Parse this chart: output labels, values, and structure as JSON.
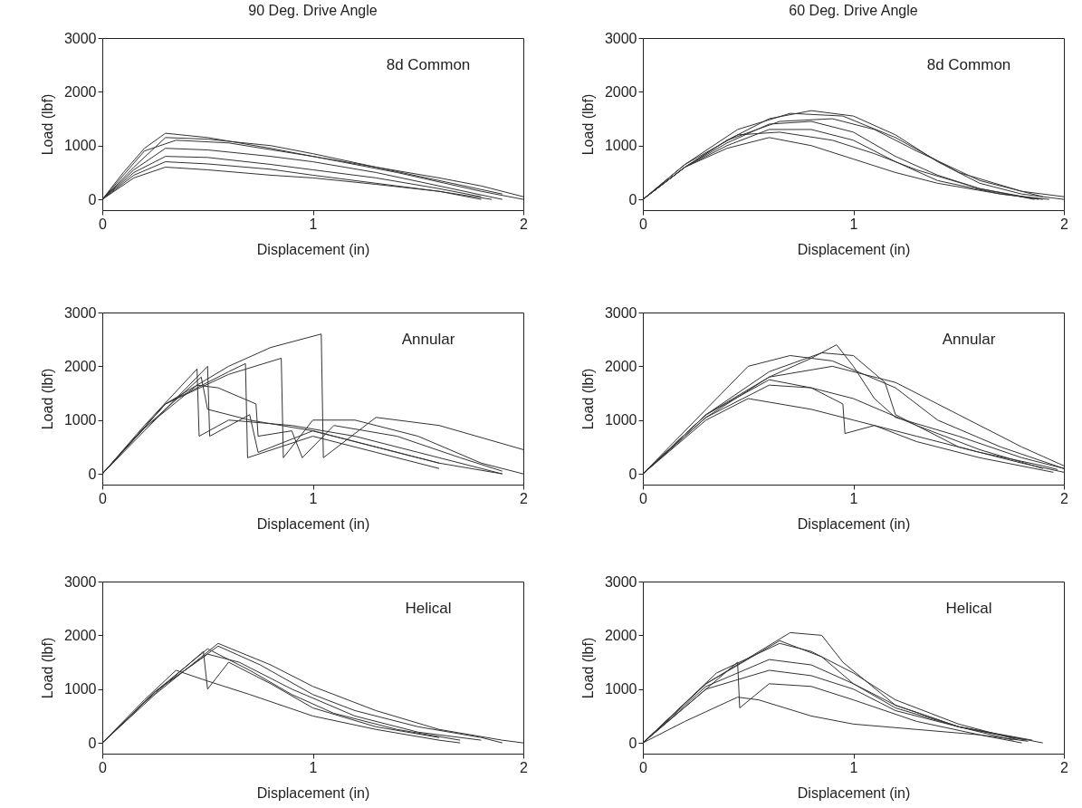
{
  "chart_data": [
    {
      "type": "line",
      "title": "90 Deg. Drive Angle",
      "xlabel": "Displacement (in)",
      "ylabel": "Load (lbf)",
      "annotations": [
        "8d Common"
      ],
      "xlim": [
        0,
        2
      ],
      "xticks": [
        0,
        1,
        2
      ],
      "ylim": [
        -200,
        3000
      ],
      "yticks": [
        0,
        1000,
        2000,
        3000
      ],
      "grid": false,
      "legend": false,
      "line_style": "solid",
      "series": [
        {
          "color": "#333333",
          "x": [
            0,
            0.1,
            0.2,
            0.3,
            0.5,
            0.8,
            1.0,
            1.3,
            1.6,
            1.8,
            2.0
          ],
          "values": [
            0,
            500,
            950,
            1230,
            1150,
            950,
            800,
            600,
            400,
            250,
            50
          ]
        },
        {
          "color": "#333333",
          "x": [
            0,
            0.15,
            0.3,
            0.5,
            0.8,
            1.0,
            1.3,
            1.6,
            1.9
          ],
          "values": [
            0,
            600,
            1150,
            1120,
            1000,
            850,
            600,
            350,
            100
          ]
        },
        {
          "color": "#333333",
          "x": [
            0,
            0.15,
            0.3,
            0.5,
            0.8,
            1.0,
            1.3,
            1.6,
            1.9
          ],
          "values": [
            0,
            550,
            950,
            920,
            800,
            700,
            500,
            250,
            0
          ]
        },
        {
          "color": "#333333",
          "x": [
            0,
            0.15,
            0.3,
            0.5,
            0.8,
            1.0,
            1.3,
            1.6,
            1.8
          ],
          "values": [
            0,
            500,
            800,
            780,
            650,
            550,
            400,
            200,
            50
          ]
        },
        {
          "color": "#333333",
          "x": [
            0,
            0.15,
            0.3,
            0.5,
            0.8,
            1.0,
            1.3,
            1.6,
            1.8
          ],
          "values": [
            0,
            450,
            700,
            660,
            560,
            450,
            300,
            150,
            0
          ]
        },
        {
          "color": "#333333",
          "x": [
            0,
            0.15,
            0.3,
            0.5,
            0.8,
            1.0,
            1.3,
            1.6,
            1.85
          ],
          "values": [
            0,
            400,
            600,
            550,
            450,
            400,
            280,
            150,
            0
          ]
        },
        {
          "color": "#333333",
          "x": [
            0,
            0.2,
            0.35,
            0.6,
            1.0,
            1.4,
            1.8,
            2.0
          ],
          "values": [
            0,
            900,
            1100,
            1050,
            800,
            500,
            150,
            0
          ]
        }
      ]
    },
    {
      "type": "line",
      "title": "60 Deg. Drive Angle",
      "xlabel": "Displacement (in)",
      "ylabel": "Load (lbf)",
      "annotations": [
        "8d Common"
      ],
      "xlim": [
        0,
        2
      ],
      "xticks": [
        0,
        1,
        2
      ],
      "ylim": [
        -200,
        3000
      ],
      "yticks": [
        0,
        1000,
        2000,
        3000
      ],
      "grid": false,
      "legend": false,
      "line_style": "solid",
      "series": [
        {
          "color": "#333333",
          "x": [
            0,
            0.2,
            0.4,
            0.6,
            0.8,
            1.0,
            1.2,
            1.4,
            1.6,
            1.8,
            2.0
          ],
          "values": [
            0,
            600,
            1100,
            1500,
            1650,
            1550,
            1200,
            700,
            300,
            100,
            0
          ]
        },
        {
          "color": "#333333",
          "x": [
            0,
            0.2,
            0.4,
            0.6,
            0.8,
            1.0,
            1.2,
            1.4,
            1.6,
            1.88
          ],
          "values": [
            0,
            600,
            1050,
            1400,
            1450,
            1250,
            800,
            450,
            200,
            0
          ]
        },
        {
          "color": "#333333",
          "x": [
            0,
            0.2,
            0.4,
            0.6,
            0.8,
            1.0,
            1.2,
            1.4,
            1.7,
            1.9
          ],
          "values": [
            0,
            600,
            1000,
            1300,
            1300,
            1100,
            700,
            350,
            100,
            0
          ]
        },
        {
          "color": "#333333",
          "x": [
            0,
            0.2,
            0.4,
            0.6,
            0.8,
            1.0,
            1.2,
            1.4,
            1.7,
            1.93
          ],
          "values": [
            0,
            600,
            950,
            1150,
            1000,
            750,
            500,
            300,
            100,
            0
          ]
        },
        {
          "color": "#333333",
          "x": [
            0,
            0.2,
            0.45,
            0.65,
            0.9,
            1.1,
            1.3,
            1.6,
            1.86
          ],
          "values": [
            0,
            650,
            1200,
            1250,
            1100,
            850,
            550,
            200,
            0
          ]
        },
        {
          "color": "#333333",
          "x": [
            0,
            0.2,
            0.4,
            0.65,
            0.9,
            1.1,
            1.3,
            1.6,
            1.9
          ],
          "values": [
            0,
            600,
            1100,
            1450,
            1500,
            1300,
            900,
            350,
            50
          ]
        },
        {
          "color": "#333333",
          "x": [
            0,
            0.2,
            0.45,
            0.7,
            0.95,
            1.2,
            1.5,
            1.8,
            2.0
          ],
          "values": [
            0,
            650,
            1300,
            1600,
            1550,
            1150,
            500,
            150,
            50
          ]
        }
      ]
    },
    {
      "type": "line",
      "xlabel": "Displacement (in)",
      "ylabel": "Load (lbf)",
      "annotations": [
        "Annular"
      ],
      "xlim": [
        0,
        2
      ],
      "xticks": [
        0,
        1,
        2
      ],
      "ylim": [
        -200,
        3000
      ],
      "yticks": [
        0,
        1000,
        2000,
        3000
      ],
      "grid": false,
      "legend": false,
      "line_style": "solid",
      "series": [
        {
          "color": "#333333",
          "x": [
            0,
            0.2,
            0.45,
            0.46,
            0.6,
            0.9,
            1.2,
            1.5,
            1.8,
            1.9
          ],
          "values": [
            0,
            900,
            1950,
            700,
            1000,
            900,
            700,
            400,
            100,
            0
          ]
        },
        {
          "color": "#333333",
          "x": [
            0,
            0.2,
            0.47,
            0.5,
            0.7,
            1.0,
            1.3,
            1.6,
            1.9
          ],
          "values": [
            0,
            850,
            1800,
            1200,
            1000,
            800,
            500,
            200,
            0
          ]
        },
        {
          "color": "#333333",
          "x": [
            0,
            0.2,
            0.5,
            0.51,
            0.7,
            0.74,
            1.0,
            1.3,
            1.6
          ],
          "values": [
            0,
            800,
            2000,
            700,
            1100,
            400,
            800,
            500,
            200
          ]
        },
        {
          "color": "#333333",
          "x": [
            0,
            0.3,
            0.6,
            0.68,
            0.69,
            1.0,
            1.3,
            1.6
          ],
          "values": [
            0,
            1300,
            1900,
            2050,
            300,
            700,
            400,
            100
          ]
        },
        {
          "color": "#333333",
          "x": [
            0,
            0.3,
            0.6,
            0.85,
            0.86,
            1.0,
            1.2,
            1.5,
            1.8,
            2.0
          ],
          "values": [
            0,
            1300,
            1850,
            2150,
            300,
            1000,
            1000,
            700,
            200,
            0
          ]
        },
        {
          "color": "#333333",
          "x": [
            0,
            0.3,
            0.6,
            0.8,
            1.04,
            1.05,
            1.3,
            1.6,
            2.0
          ],
          "values": [
            0,
            1300,
            2000,
            2350,
            2600,
            300,
            1050,
            900,
            450
          ]
        },
        {
          "color": "#333333",
          "x": [
            0,
            0.2,
            0.45,
            0.55,
            0.73,
            0.74,
            0.9,
            0.95,
            1.1,
            1.4,
            1.7,
            1.9
          ],
          "values": [
            0,
            850,
            1650,
            1600,
            1300,
            700,
            800,
            300,
            900,
            700,
            300,
            50
          ]
        }
      ]
    },
    {
      "type": "line",
      "xlabel": "Displacement (in)",
      "ylabel": "Load (lbf)",
      "annotations": [
        "Annular"
      ],
      "xlim": [
        0,
        2
      ],
      "xticks": [
        0,
        1,
        2
      ],
      "ylim": [
        -200,
        3000
      ],
      "yticks": [
        0,
        1000,
        2000,
        3000
      ],
      "grid": false,
      "legend": false,
      "line_style": "solid",
      "series": [
        {
          "color": "#333333",
          "x": [
            0,
            0.3,
            0.5,
            0.8,
            1.0,
            1.3,
            1.6,
            1.9,
            1.97
          ],
          "values": [
            0,
            1000,
            1400,
            1200,
            1000,
            700,
            400,
            150,
            80
          ]
        },
        {
          "color": "#333333",
          "x": [
            0,
            0.3,
            0.6,
            0.8,
            0.95,
            0.96,
            1.1,
            1.3,
            1.6,
            1.95
          ],
          "values": [
            0,
            1100,
            1750,
            1600,
            1300,
            750,
            900,
            600,
            300,
            30
          ]
        },
        {
          "color": "#333333",
          "x": [
            0,
            0.3,
            0.5,
            0.7,
            0.9,
            1.2,
            1.4,
            1.7,
            2.0
          ],
          "values": [
            0,
            1200,
            2000,
            2200,
            2100,
            1600,
            1000,
            500,
            100
          ]
        },
        {
          "color": "#333333",
          "x": [
            0,
            0.3,
            0.6,
            0.8,
            0.92,
            1.0,
            1.1,
            1.2,
            1.5,
            1.8,
            2.0
          ],
          "values": [
            0,
            1050,
            1800,
            2150,
            2400,
            2000,
            1400,
            1050,
            700,
            300,
            100
          ]
        },
        {
          "color": "#333333",
          "x": [
            0,
            0.3,
            0.6,
            0.85,
            1.0,
            1.15,
            1.2,
            1.5,
            1.8,
            2.0
          ],
          "values": [
            0,
            1100,
            1900,
            2250,
            2200,
            1700,
            1100,
            500,
            200,
            30
          ]
        },
        {
          "color": "#333333",
          "x": [
            0,
            0.3,
            0.6,
            0.9,
            1.2,
            1.5,
            1.8,
            2.0
          ],
          "values": [
            0,
            1100,
            1800,
            2000,
            1700,
            1100,
            500,
            150
          ]
        },
        {
          "color": "#333333",
          "x": [
            0,
            0.3,
            0.6,
            0.8,
            1.0,
            1.3,
            1.6,
            1.9
          ],
          "values": [
            0,
            1050,
            1650,
            1600,
            1400,
            900,
            450,
            100
          ]
        }
      ]
    },
    {
      "type": "line",
      "xlabel": "Displacement (in)",
      "ylabel": "Load (lbf)",
      "annotations": [
        "Helical"
      ],
      "xlim": [
        0,
        2
      ],
      "xticks": [
        0,
        1,
        2
      ],
      "ylim": [
        -200,
        3000
      ],
      "yticks": [
        0,
        1000,
        2000,
        3000
      ],
      "grid": false,
      "legend": false,
      "line_style": "solid",
      "series": [
        {
          "color": "#333333",
          "x": [
            0,
            0.2,
            0.35,
            0.5,
            0.7,
            1.0,
            1.3,
            1.6,
            1.7
          ],
          "values": [
            0,
            800,
            1350,
            1150,
            900,
            500,
            250,
            50,
            0
          ]
        },
        {
          "color": "#333333",
          "x": [
            0,
            0.2,
            0.48,
            0.5,
            0.6,
            0.8,
            1.0,
            1.3,
            1.6
          ],
          "values": [
            0,
            750,
            1700,
            1000,
            1500,
            1100,
            650,
            300,
            100
          ]
        },
        {
          "color": "#333333",
          "x": [
            0,
            0.25,
            0.5,
            0.7,
            0.9,
            1.1,
            1.4,
            1.7
          ],
          "values": [
            0,
            950,
            1750,
            1350,
            900,
            550,
            250,
            50
          ]
        },
        {
          "color": "#333333",
          "x": [
            0,
            0.25,
            0.55,
            0.75,
            1.0,
            1.2,
            1.5,
            1.8,
            1.9
          ],
          "values": [
            0,
            950,
            1800,
            1450,
            900,
            600,
            300,
            100,
            0
          ]
        },
        {
          "color": "#333333",
          "x": [
            0,
            0.25,
            0.55,
            0.8,
            1.0,
            1.3,
            1.6,
            1.9,
            2.0
          ],
          "values": [
            0,
            900,
            1850,
            1450,
            1050,
            600,
            250,
            50,
            0
          ]
        },
        {
          "color": "#333333",
          "x": [
            0,
            0.25,
            0.5,
            0.65,
            0.9,
            1.2,
            1.5,
            1.8
          ],
          "values": [
            0,
            950,
            1650,
            1500,
            1000,
            500,
            200,
            50
          ]
        }
      ]
    },
    {
      "type": "line",
      "xlabel": "Displacement (in)",
      "ylabel": "Load (lbf)",
      "annotations": [
        "Helical"
      ],
      "xlim": [
        0,
        2
      ],
      "xticks": [
        0,
        1,
        2
      ],
      "ylim": [
        -200,
        3000
      ],
      "yticks": [
        0,
        1000,
        2000,
        3000
      ],
      "grid": false,
      "legend": false,
      "line_style": "solid",
      "series": [
        {
          "color": "#333333",
          "x": [
            0,
            0.2,
            0.45,
            0.55,
            0.8,
            1.0,
            1.3,
            1.6,
            1.83
          ],
          "values": [
            0,
            400,
            850,
            800,
            500,
            350,
            250,
            150,
            30
          ]
        },
        {
          "color": "#333333",
          "x": [
            0,
            0.3,
            0.45,
            0.46,
            0.6,
            0.8,
            1.0,
            1.3,
            1.6,
            1.8
          ],
          "values": [
            0,
            1000,
            1500,
            650,
            1100,
            1050,
            800,
            400,
            150,
            0
          ]
        },
        {
          "color": "#333333",
          "x": [
            0,
            0.3,
            0.6,
            0.8,
            1.0,
            1.2,
            1.5,
            1.76
          ],
          "values": [
            0,
            1000,
            1350,
            1250,
            1000,
            600,
            300,
            50
          ]
        },
        {
          "color": "#333333",
          "x": [
            0,
            0.3,
            0.6,
            0.8,
            1.0,
            1.2,
            1.5,
            1.82
          ],
          "values": [
            0,
            1050,
            1550,
            1450,
            1100,
            700,
            300,
            50
          ]
        },
        {
          "color": "#333333",
          "x": [
            0,
            0.3,
            0.65,
            0.85,
            1.0,
            1.2,
            1.5,
            1.85
          ],
          "values": [
            0,
            1100,
            1900,
            1600,
            1100,
            650,
            300,
            50
          ]
        },
        {
          "color": "#333333",
          "x": [
            0,
            0.3,
            0.7,
            0.85,
            0.95,
            1.2,
            1.5,
            1.9
          ],
          "values": [
            0,
            1100,
            2050,
            2000,
            1500,
            700,
            300,
            0
          ]
        },
        {
          "color": "#333333",
          "x": [
            0,
            0.35,
            0.65,
            0.8,
            1.0,
            1.2,
            1.5,
            1.78
          ],
          "values": [
            0,
            1300,
            1850,
            1700,
            1300,
            800,
            350,
            60
          ]
        }
      ]
    }
  ]
}
